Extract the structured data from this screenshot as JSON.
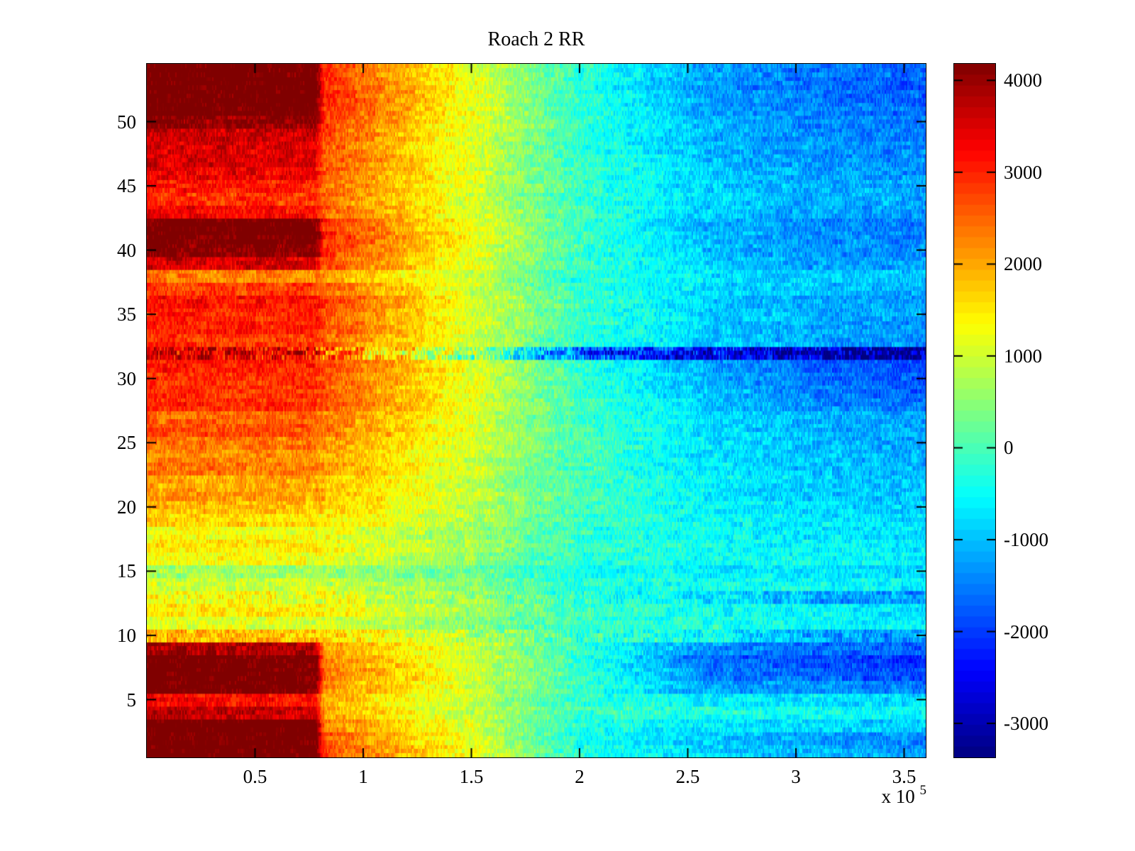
{
  "chart_data": {
    "type": "heatmap",
    "title": "Roach 2 RR",
    "colormap": "jet",
    "grid": false,
    "colorbar": {
      "position": "right",
      "cmin": -3370,
      "cmax": 4180,
      "levels": 64,
      "ticks": [
        4000,
        3000,
        2000,
        1000,
        0,
        -1000,
        -2000,
        -3000
      ],
      "tick_labels": [
        "4000",
        "3000",
        "2000",
        "1000",
        "0",
        "-1000",
        "-2000",
        "-3000"
      ]
    },
    "x_axis": {
      "min": 0,
      "max": 360000,
      "ticks": [
        50000,
        100000,
        150000,
        200000,
        250000,
        300000,
        350000
      ],
      "tick_labels": [
        "0.5",
        "1",
        "1.5",
        "2",
        "2.5",
        "3",
        "3.5"
      ],
      "multiplier": {
        "prefix": "x 10",
        "exponent": "5"
      }
    },
    "y_axis": {
      "min": 0.5,
      "max": 54.5,
      "rows": 54,
      "ticks": [
        5,
        10,
        15,
        20,
        25,
        30,
        35,
        40,
        45,
        50
      ],
      "tick_labels": [
        "5",
        "10",
        "15",
        "20",
        "25",
        "30",
        "35",
        "40",
        "45",
        "50"
      ]
    },
    "row_profile_x": [
      0,
      78000,
      82000,
      150000,
      200000,
      260000,
      310000,
      360000
    ],
    "row_profiles": [
      [
        4400,
        4400,
        2700,
        1200,
        -300,
        -800,
        -1100,
        -1300
      ],
      [
        4400,
        4400,
        2600,
        1100,
        -400,
        -900,
        -1300,
        -1400
      ],
      [
        4400,
        4400,
        2300,
        1000,
        -300,
        -700,
        -800,
        -900
      ],
      [
        3800,
        3600,
        2000,
        900,
        -100,
        -300,
        -400,
        -500
      ],
      [
        3300,
        3100,
        1900,
        900,
        -200,
        -600,
        -700,
        -800
      ],
      [
        4400,
        4300,
        2200,
        1000,
        -200,
        -1200,
        -1400,
        -1500
      ],
      [
        4400,
        4300,
        2400,
        1100,
        -100,
        -1500,
        -1700,
        -1900
      ],
      [
        4400,
        4300,
        2300,
        1000,
        -200,
        -1700,
        -1900,
        -2100
      ],
      [
        3900,
        3800,
        2100,
        1000,
        -200,
        -1300,
        -1600,
        -1700
      ],
      [
        1900,
        1800,
        1700,
        800,
        -100,
        -500,
        -1200,
        -1400
      ],
      [
        1100,
        1050,
        1000,
        500,
        -200,
        -300,
        -500,
        -600
      ],
      [
        1500,
        1450,
        1350,
        700,
        -100,
        -400,
        -600,
        -700
      ],
      [
        1300,
        1250,
        1150,
        600,
        -200,
        -700,
        -1100,
        -1300
      ],
      [
        1000,
        950,
        900,
        450,
        -250,
        -400,
        -500,
        -600
      ],
      [
        650,
        620,
        600,
        250,
        -400,
        -600,
        -700,
        -800
      ],
      [
        1300,
        1250,
        1150,
        600,
        -200,
        -400,
        -500,
        -600
      ],
      [
        1500,
        1450,
        1350,
        700,
        -100,
        -400,
        -600,
        -700
      ],
      [
        1300,
        1250,
        1200,
        600,
        -200,
        -500,
        -700,
        -800
      ],
      [
        1700,
        1650,
        1500,
        750,
        -100,
        -500,
        -700,
        -800
      ],
      [
        1900,
        1850,
        1700,
        850,
        -100,
        -500,
        -800,
        -900
      ],
      [
        2100,
        2050,
        1900,
        950,
        0,
        -600,
        -900,
        -1000
      ],
      [
        2000,
        1950,
        1800,
        900,
        -100,
        -600,
        -900,
        -1000
      ],
      [
        2400,
        2300,
        2100,
        1000,
        0,
        -700,
        -1000,
        -1100
      ],
      [
        2200,
        2150,
        2000,
        950,
        -100,
        -700,
        -1000,
        -1100
      ],
      [
        2400,
        2350,
        2200,
        1000,
        0,
        -700,
        -1000,
        -1200
      ],
      [
        2700,
        2600,
        2400,
        1100,
        0,
        -800,
        -1100,
        -1200
      ],
      [
        2500,
        2450,
        2300,
        1050,
        -100,
        -800,
        -1100,
        -1300
      ],
      [
        3000,
        2900,
        2700,
        1200,
        0,
        -900,
        -1400,
        -1600
      ],
      [
        2900,
        2850,
        2600,
        1150,
        -100,
        -1000,
        -1500,
        -1700
      ],
      [
        2900,
        2850,
        2600,
        1150,
        -100,
        -1100,
        -1600,
        -1800
      ],
      [
        3100,
        3000,
        2800,
        1200,
        -200,
        -1200,
        -1700,
        -1900
      ],
      [
        3400,
        3300,
        2400,
        500,
        -1800,
        -2400,
        -2900,
        -3200
      ],
      [
        2900,
        2800,
        2500,
        1000,
        -200,
        -900,
        -1200,
        -1400
      ],
      [
        3100,
        3000,
        2700,
        1100,
        -100,
        -900,
        -1200,
        -1300
      ],
      [
        3000,
        2950,
        2600,
        1100,
        -200,
        -800,
        -1100,
        -1200
      ],
      [
        3200,
        3100,
        2800,
        1150,
        -100,
        -900,
        -1200,
        -1300
      ],
      [
        2800,
        2750,
        2500,
        1000,
        -200,
        -800,
        -1000,
        -1100
      ],
      [
        2300,
        2250,
        2100,
        900,
        -250,
        -700,
        -900,
        -1000
      ],
      [
        3600,
        3500,
        2700,
        1100,
        -100,
        -900,
        -1200,
        -1300
      ],
      [
        4200,
        4100,
        2900,
        1200,
        -100,
        -1000,
        -1300,
        -1400
      ],
      [
        4400,
        4300,
        3000,
        1250,
        -100,
        -1000,
        -1300,
        -1500
      ],
      [
        4400,
        4300,
        2900,
        1200,
        -200,
        -1100,
        -1400,
        -1500
      ],
      [
        3300,
        3200,
        2600,
        1100,
        -100,
        -900,
        -1200,
        -1300
      ],
      [
        2900,
        2850,
        2400,
        1000,
        -200,
        -800,
        -1100,
        -1200
      ],
      [
        3100,
        3050,
        2500,
        1050,
        -100,
        -900,
        -1100,
        -1200
      ],
      [
        3400,
        3300,
        2600,
        1100,
        -100,
        -900,
        -1200,
        -1300
      ],
      [
        3600,
        3500,
        2700,
        1100,
        -200,
        -1000,
        -1300,
        -1400
      ],
      [
        3500,
        3450,
        2600,
        1050,
        -250,
        -1000,
        -1300,
        -1400
      ],
      [
        3700,
        3600,
        2700,
        1100,
        -200,
        -1100,
        -1400,
        -1500
      ],
      [
        4100,
        4000,
        2800,
        1150,
        -100,
        -1100,
        -1400,
        -1500
      ],
      [
        4400,
        4350,
        2900,
        1200,
        -200,
        -1200,
        -1500,
        -1600
      ],
      [
        4400,
        4400,
        3000,
        1250,
        -200,
        -1200,
        -1500,
        -1700
      ],
      [
        4400,
        4400,
        2900,
        1200,
        -300,
        -1300,
        -1600,
        -1800
      ],
      [
        4400,
        4350,
        2800,
        1150,
        -250,
        -1200,
        -1500,
        -1700
      ]
    ],
    "row_noise": {
      "default": 430,
      "overrides": {
        "10": 550,
        "13": 550,
        "32": 1000
      }
    },
    "noise_seed": 1234
  }
}
